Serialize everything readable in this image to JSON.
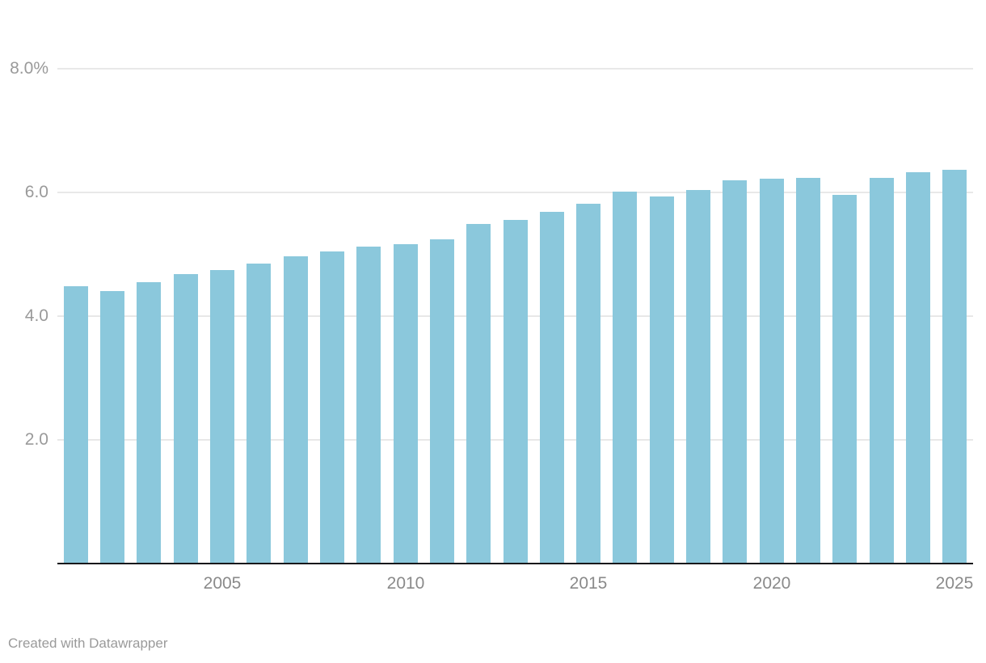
{
  "chart_data": {
    "type": "bar",
    "title": "",
    "xlabel": "",
    "ylabel": "",
    "unit": "%",
    "x": [
      2001,
      2002,
      2003,
      2004,
      2005,
      2006,
      2007,
      2008,
      2009,
      2010,
      2011,
      2012,
      2013,
      2014,
      2015,
      2016,
      2017,
      2018,
      2019,
      2020,
      2021,
      2022,
      2023,
      2024,
      2025
    ],
    "values": [
      4.49,
      4.4,
      4.55,
      4.68,
      4.74,
      4.85,
      4.97,
      5.05,
      5.12,
      5.16,
      5.24,
      5.49,
      5.56,
      5.69,
      5.82,
      6.01,
      5.94,
      6.04,
      6.19,
      6.22,
      6.24,
      5.96,
      6.24,
      6.33,
      6.37
    ],
    "ylim": [
      0,
      8
    ],
    "yticks": [
      {
        "value": 2,
        "label": "2.0"
      },
      {
        "value": 4,
        "label": "4.0"
      },
      {
        "value": 6,
        "label": "6.0"
      },
      {
        "value": 8,
        "label": "8.0%"
      }
    ],
    "xticks": [
      {
        "index": 4,
        "label": "2005"
      },
      {
        "index": 9,
        "label": "2010"
      },
      {
        "index": 14,
        "label": "2015"
      },
      {
        "index": 19,
        "label": "2020"
      },
      {
        "index": 24,
        "label": "2025"
      }
    ],
    "grid": "horizontal",
    "legend": "none"
  },
  "colors": {
    "bar": "#8bc8dc",
    "grid": "#e8e8e8",
    "axis_line": "#18181b",
    "y_tick_label": "#9a9a9a",
    "x_tick_label": "#8a8a8a",
    "footer_text": "#9a9a9a",
    "background": "#ffffff"
  },
  "footer": {
    "attribution": "Created with Datawrapper"
  }
}
